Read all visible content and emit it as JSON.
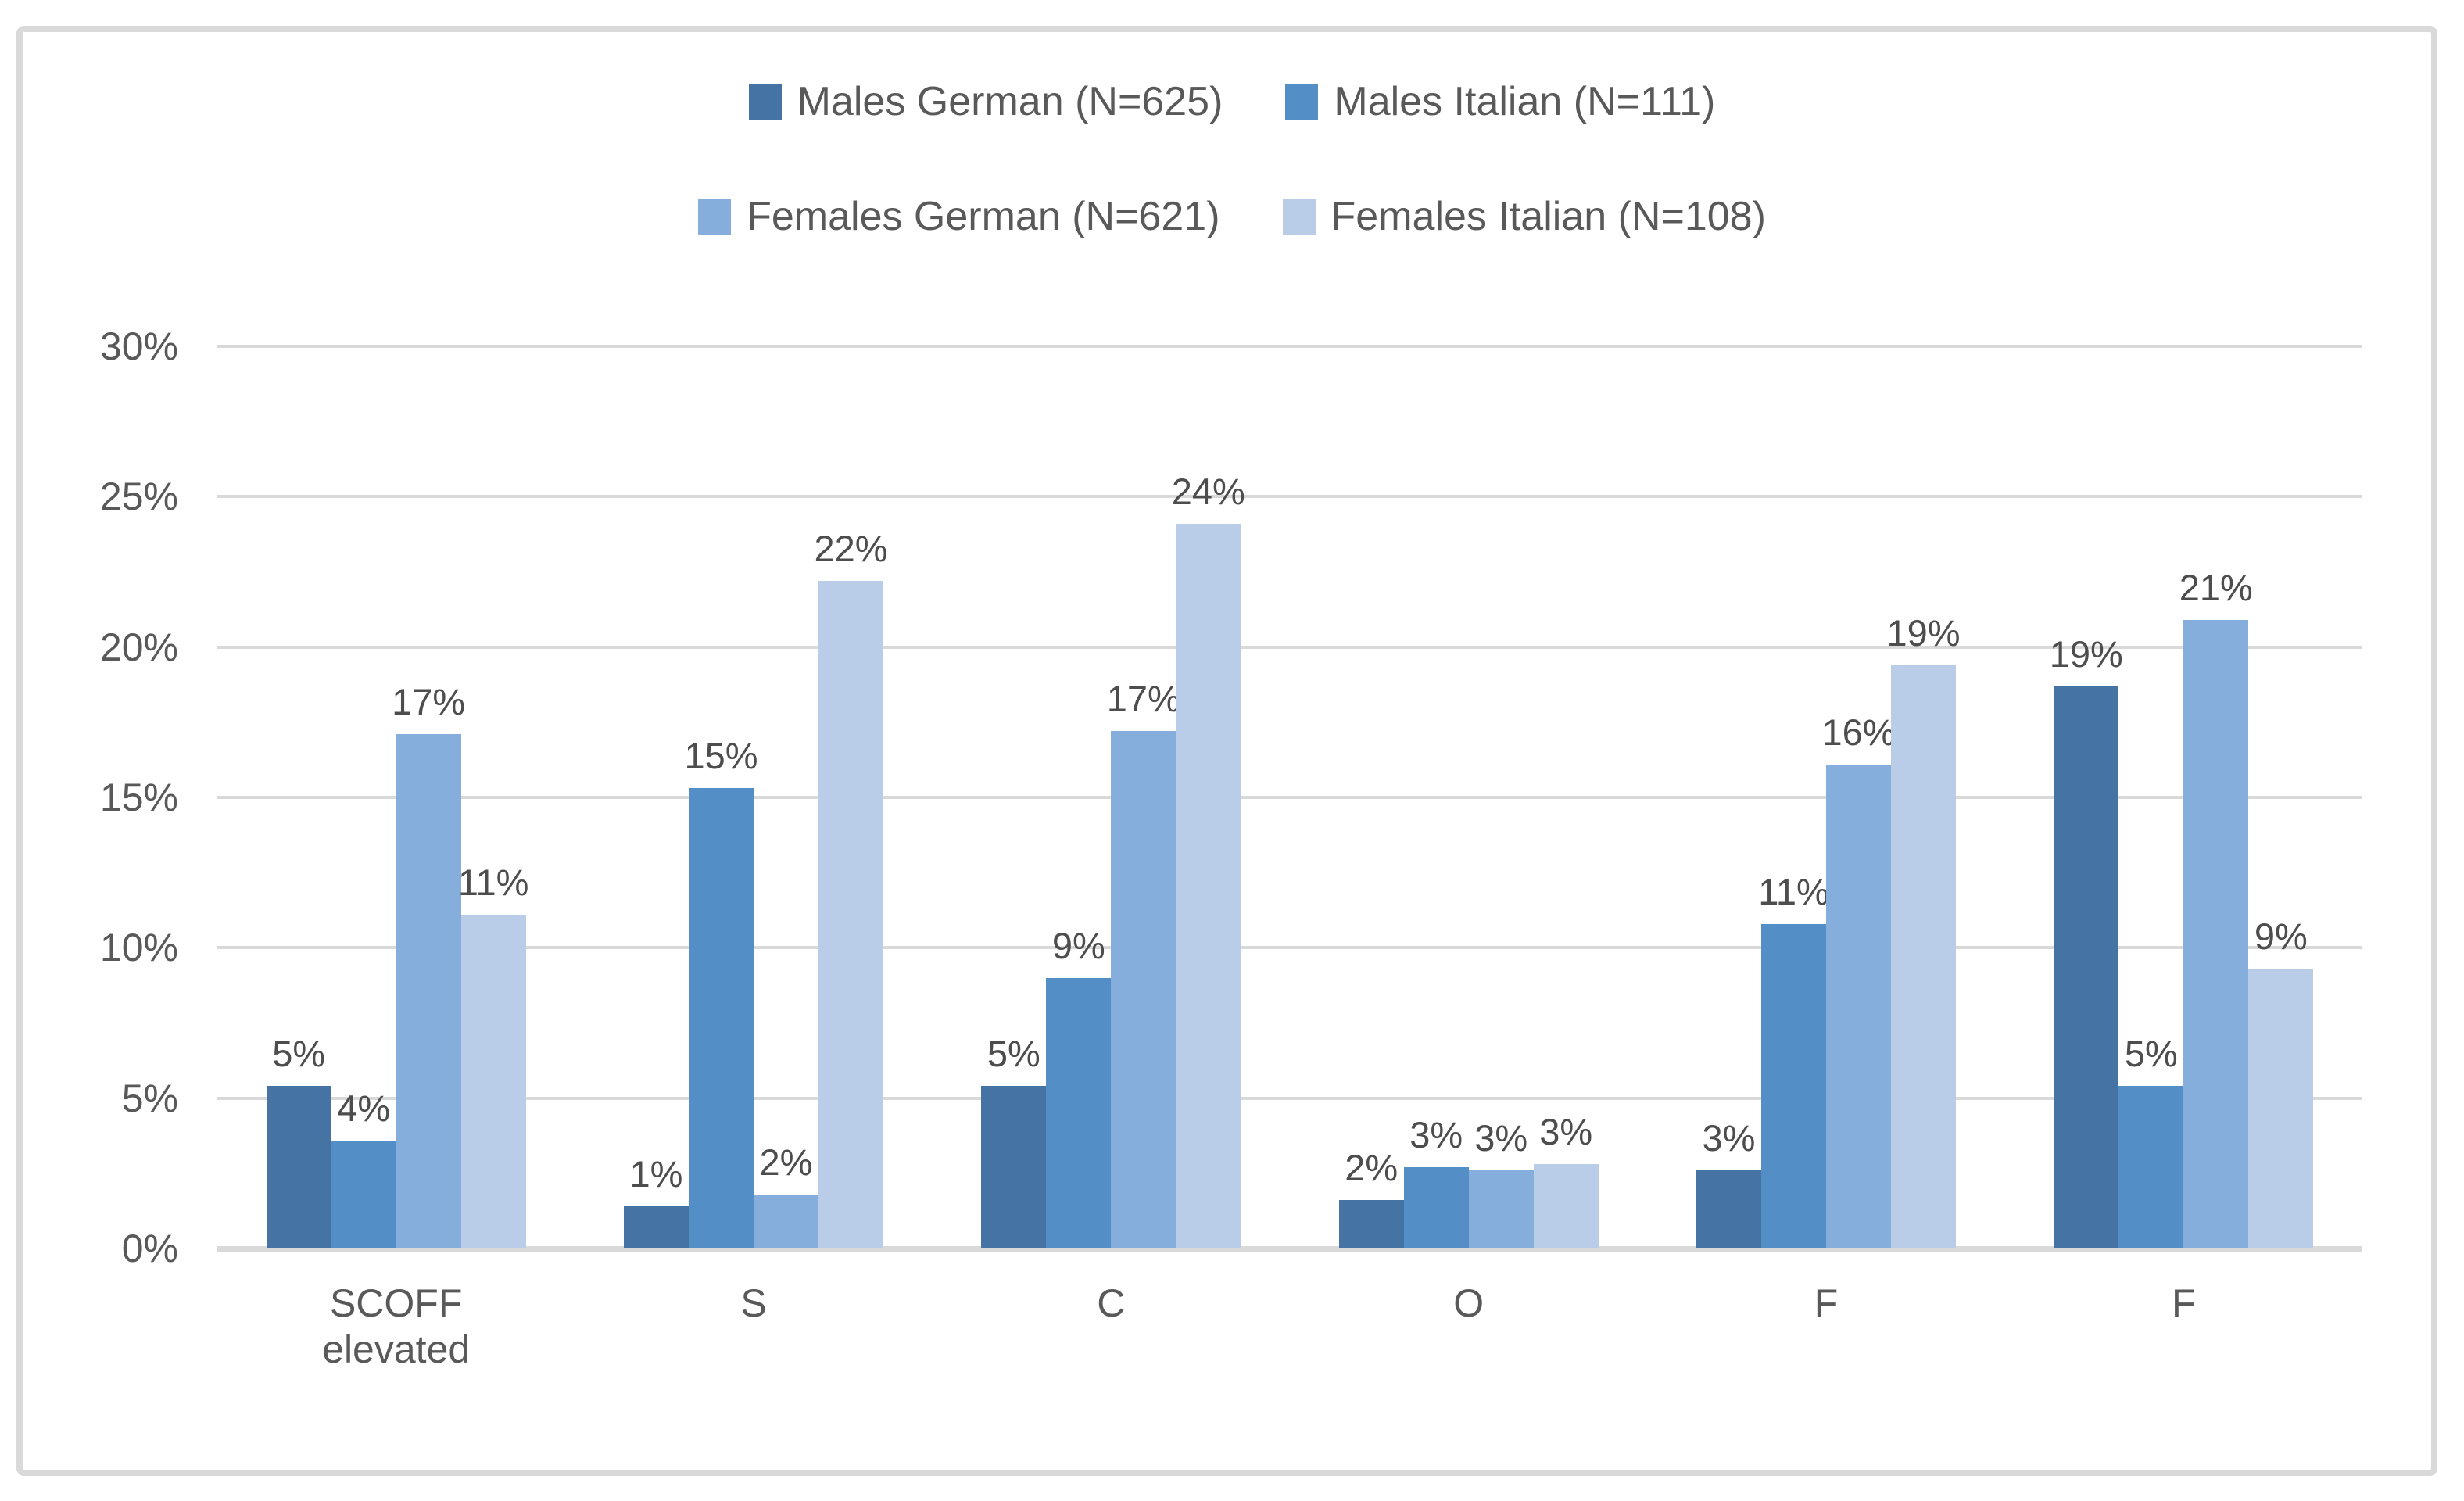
{
  "figure": {
    "border_color": "#D9D9D9",
    "background": "#ffffff",
    "text_color": "#595959"
  },
  "chart_data": {
    "type": "bar",
    "title": "",
    "xlabel": "",
    "ylabel": "",
    "grid": true,
    "legend_position": "top",
    "categories": [
      "SCOFF\nelevated",
      "S",
      "C",
      "O",
      "F",
      "F"
    ],
    "y_axis": {
      "ylim": [
        0,
        30
      ],
      "tick_values": [
        0,
        5,
        10,
        15,
        20,
        25,
        30
      ],
      "tick_labels": [
        "0%",
        "5%",
        "10%",
        "15%",
        "20%",
        "25%",
        "30%"
      ]
    },
    "series": [
      {
        "name": "Males German (N=625)",
        "color": "#4574A4",
        "values": [
          5.4,
          1.4,
          5.4,
          1.6,
          2.6,
          18.7
        ],
        "labels": [
          "5%",
          "1%",
          "5%",
          "2%",
          "3%",
          "19%"
        ]
      },
      {
        "name": "Males Italian (N=111)",
        "color": "#548EC6",
        "values": [
          3.6,
          15.3,
          9.0,
          2.7,
          10.8,
          5.4
        ],
        "labels": [
          "4%",
          "15%",
          "9%",
          "3%",
          "11%",
          "5%"
        ]
      },
      {
        "name": "Females German (N=621)",
        "color": "#85AEDC",
        "values": [
          17.1,
          1.8,
          17.2,
          2.6,
          16.1,
          20.9
        ],
        "labels": [
          "17%",
          "2%",
          "17%",
          "3%",
          "16%",
          "21%"
        ]
      },
      {
        "name": "Females Italian (N=108)",
        "color": "#B9CDE8",
        "values": [
          11.1,
          22.2,
          24.1,
          2.8,
          19.4,
          9.3
        ],
        "labels": [
          "11%",
          "22%",
          "24%",
          "3%",
          "19%",
          "9%"
        ]
      }
    ]
  }
}
